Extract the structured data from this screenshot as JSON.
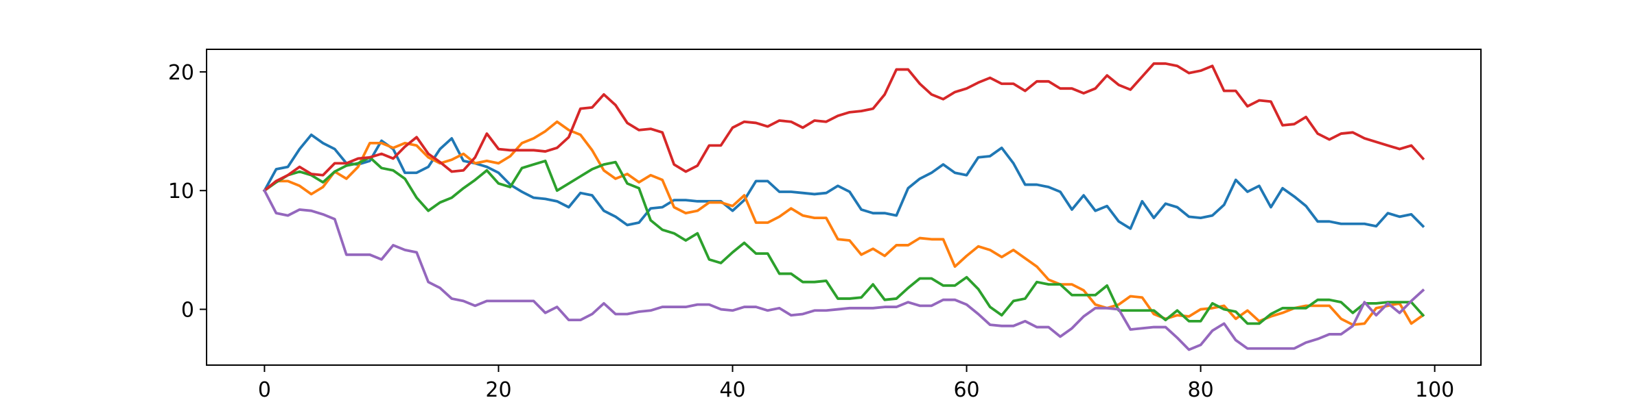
{
  "chart_data": {
    "type": "line",
    "x": [
      0,
      1,
      2,
      3,
      4,
      5,
      6,
      7,
      8,
      9,
      10,
      11,
      12,
      13,
      14,
      15,
      16,
      17,
      18,
      19,
      20,
      21,
      22,
      23,
      24,
      25,
      26,
      27,
      28,
      29,
      30,
      31,
      32,
      33,
      34,
      35,
      36,
      37,
      38,
      39,
      40,
      41,
      42,
      43,
      44,
      45,
      46,
      47,
      48,
      49,
      50,
      51,
      52,
      53,
      54,
      55,
      56,
      57,
      58,
      59,
      60,
      61,
      62,
      63,
      64,
      65,
      66,
      67,
      68,
      69,
      70,
      71,
      72,
      73,
      74,
      75,
      76,
      77,
      78,
      79,
      80,
      81,
      82,
      83,
      84,
      85,
      86,
      87,
      88,
      89,
      90,
      91,
      92,
      93,
      94,
      95,
      96,
      97,
      98,
      99
    ],
    "series": [
      {
        "color": "#1f77b4",
        "values": [
          10,
          11.8,
          12,
          13.5,
          14.7,
          14,
          13.5,
          12.3,
          12.2,
          12.5,
          14.2,
          13.5,
          11.5,
          11.5,
          12,
          13.5,
          14.4,
          12.5,
          12.3,
          12,
          11.5,
          10.5,
          9.9,
          9.4,
          9.3,
          9.1,
          8.6,
          9.8,
          9.6,
          8.3,
          7.8,
          7.1,
          7.3,
          8.5,
          8.6,
          9.2,
          9.2,
          9.1,
          9.1,
          9.1,
          8.3,
          9.2,
          10.8,
          10.8,
          9.9,
          9.9,
          9.8,
          9.7,
          9.8,
          10.4,
          9.9,
          8.4,
          8.1,
          8.1,
          7.9,
          10.2,
          11,
          11.5,
          12.2,
          11.5,
          11.3,
          12.8,
          12.9,
          13.6,
          12.3,
          10.5,
          10.5,
          10.3,
          9.9,
          8.4,
          9.6,
          8.3,
          8.7,
          7.4,
          6.8,
          9.1,
          7.7,
          8.9,
          8.6,
          7.8,
          7.7,
          7.9,
          8.8,
          10.9,
          9.9,
          10.4,
          8.6,
          10.2,
          9.5,
          8.7,
          7.4,
          7.4,
          7.2,
          7.2,
          7.2,
          7.0,
          8.1,
          7.8,
          8.0,
          7.0
        ]
      },
      {
        "color": "#ff7f0e",
        "values": [
          10,
          10.8,
          10.8,
          10.4,
          9.7,
          10.3,
          11.6,
          11,
          12,
          14,
          14,
          13.6,
          14,
          13.8,
          12.8,
          12.3,
          12.6,
          13.1,
          12.3,
          12.5,
          12.3,
          12.9,
          14,
          14.4,
          15,
          15.8,
          15.1,
          14.7,
          13.4,
          11.7,
          11,
          11.4,
          10.7,
          11.3,
          10.9,
          8.6,
          8.1,
          8.3,
          9,
          9,
          8.7,
          9.6,
          7.3,
          7.3,
          7.8,
          8.5,
          7.9,
          7.7,
          7.7,
          5.9,
          5.8,
          4.6,
          5.1,
          4.5,
          5.4,
          5.4,
          6,
          5.9,
          5.9,
          3.6,
          4.5,
          5.3,
          5,
          4.4,
          5,
          4.3,
          3.6,
          2.5,
          2.1,
          2.1,
          1.6,
          0.4,
          0.1,
          0.4,
          1.1,
          1,
          -0.4,
          -0.8,
          -0.5,
          -0.6,
          0,
          0.1,
          0.3,
          -0.8,
          -0.1,
          -1.0,
          -0.6,
          -0.3,
          0.1,
          0.3,
          0.3,
          0.3,
          -0.8,
          -1.3,
          -1.2,
          0.1,
          0.3,
          0.5,
          -1.2,
          -0.5
        ]
      },
      {
        "color": "#2ca02c",
        "values": [
          10,
          10.7,
          11.3,
          11.6,
          11.3,
          10.7,
          11.6,
          12.1,
          12.3,
          12.8,
          11.9,
          11.7,
          11,
          9.4,
          8.3,
          9,
          9.4,
          10.2,
          10.9,
          11.7,
          10.6,
          10.3,
          11.9,
          12.2,
          12.5,
          10,
          10.6,
          11.2,
          11.8,
          12.2,
          12.4,
          10.6,
          10.2,
          7.5,
          6.7,
          6.4,
          5.8,
          6.4,
          4.2,
          3.9,
          4.8,
          5.6,
          4.7,
          4.7,
          3,
          3,
          2.3,
          2.3,
          2.4,
          0.9,
          0.9,
          1,
          2.1,
          0.8,
          0.9,
          1.8,
          2.6,
          2.6,
          2,
          2,
          2.7,
          1.7,
          0.2,
          -0.5,
          0.7,
          0.9,
          2.3,
          2.1,
          2.1,
          1.2,
          1.2,
          1.2,
          2,
          -0.1,
          -0.1,
          -0.1,
          -0.1,
          -0.9,
          -0.1,
          -1,
          -1,
          0.5,
          0,
          -0.2,
          -1.2,
          -1.2,
          -0.4,
          0.1,
          0.1,
          0.1,
          0.8,
          0.8,
          0.6,
          -0.3,
          0.5,
          0.5,
          0.6,
          0.6,
          0.6,
          -0.5
        ]
      },
      {
        "color": "#d62728",
        "values": [
          10,
          10.8,
          11.3,
          12,
          11.4,
          11.3,
          12.3,
          12.3,
          12.7,
          12.8,
          13.1,
          12.7,
          13.7,
          14.5,
          13.1,
          12.4,
          11.6,
          11.7,
          12.8,
          14.8,
          13.5,
          13.4,
          13.4,
          13.4,
          13.3,
          13.6,
          14.5,
          16.9,
          17,
          18.1,
          17.2,
          15.7,
          15.1,
          15.2,
          14.9,
          12.2,
          11.6,
          12.1,
          13.8,
          13.8,
          15.3,
          15.8,
          15.7,
          15.4,
          15.9,
          15.8,
          15.3,
          15.9,
          15.8,
          16.3,
          16.6,
          16.7,
          16.9,
          18.1,
          20.2,
          20.2,
          19,
          18.1,
          17.7,
          18.3,
          18.6,
          19.1,
          19.5,
          19,
          19,
          18.4,
          19.2,
          19.2,
          18.6,
          18.6,
          18.2,
          18.6,
          19.7,
          18.9,
          18.5,
          19.6,
          20.7,
          20.7,
          20.5,
          19.9,
          20.1,
          20.5,
          18.4,
          18.4,
          17.1,
          17.6,
          17.5,
          15.5,
          15.6,
          16.2,
          14.8,
          14.3,
          14.8,
          14.9,
          14.4,
          14.1,
          13.8,
          13.5,
          13.8,
          12.7
        ]
      },
      {
        "color": "#9467bd",
        "values": [
          10,
          8.1,
          7.9,
          8.4,
          8.3,
          8,
          7.6,
          4.6,
          4.6,
          4.6,
          4.2,
          5.4,
          5,
          4.8,
          2.3,
          1.8,
          0.9,
          0.7,
          0.3,
          0.7,
          0.7,
          0.7,
          0.7,
          0.7,
          -0.3,
          0.2,
          -0.9,
          -0.9,
          -0.4,
          0.5,
          -0.4,
          -0.4,
          -0.2,
          -0.1,
          0.2,
          0.2,
          0.2,
          0.4,
          0.4,
          0,
          -0.1,
          0.2,
          0.2,
          -0.1,
          0.1,
          -0.5,
          -0.4,
          -0.1,
          -0.1,
          0,
          0.1,
          0.1,
          0.1,
          0.2,
          0.2,
          0.6,
          0.3,
          0.3,
          0.8,
          0.8,
          0.4,
          -0.4,
          -1.3,
          -1.4,
          -1.4,
          -1.0,
          -1.5,
          -1.5,
          -2.3,
          -1.6,
          -0.6,
          0.1,
          0.1,
          0,
          -1.7,
          -1.6,
          -1.5,
          -1.5,
          -2.4,
          -3.4,
          -3,
          -1.8,
          -1.2,
          -2.6,
          -3.3,
          -3.3,
          -3.3,
          -3.3,
          -3.3,
          -2.8,
          -2.5,
          -2.1,
          -2.1,
          -1.4,
          0.6,
          -0.5,
          0.5,
          -0.3,
          0.7,
          1.6
        ]
      }
    ],
    "xlim": [
      -4.95,
      103.95
    ],
    "ylim": [
      -4.7,
      21.9
    ],
    "xticks": [
      0,
      20,
      40,
      60,
      80,
      100
    ],
    "yticks": [
      0,
      10,
      20
    ],
    "grid": false
  }
}
